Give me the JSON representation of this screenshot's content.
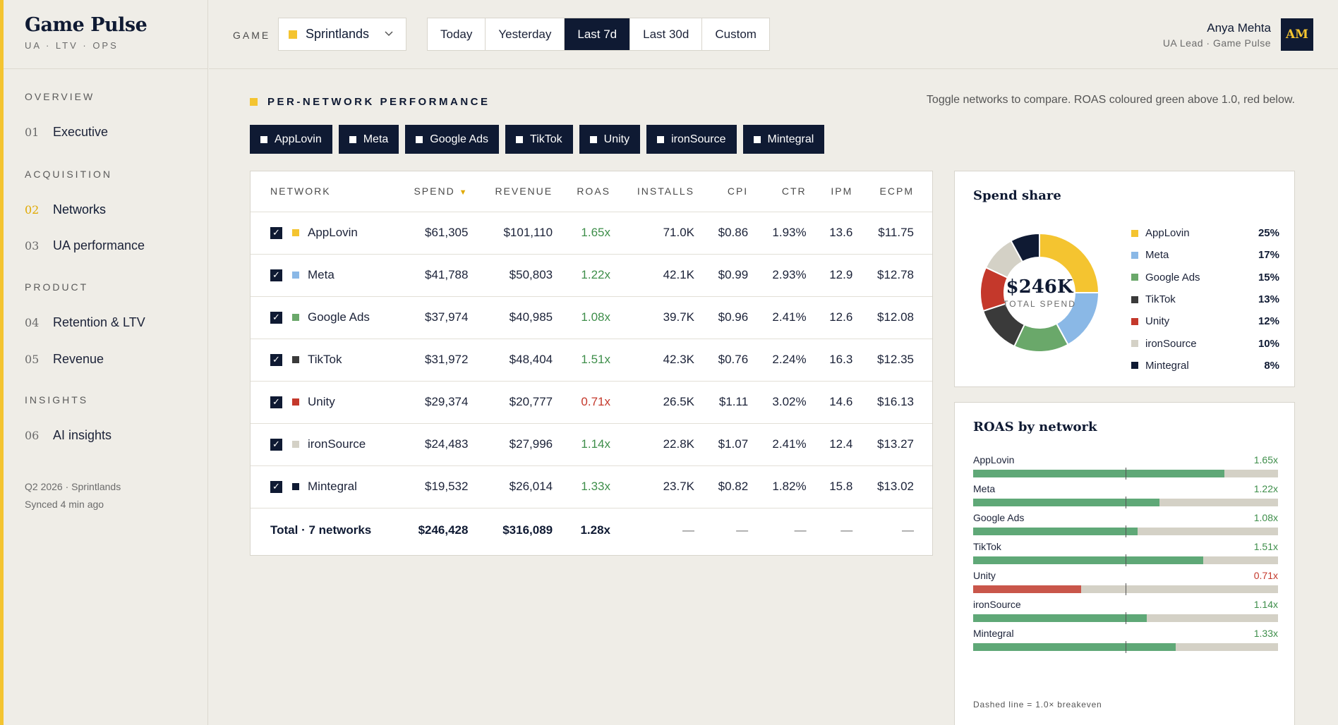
{
  "brand": {
    "title": "Game Pulse",
    "subtitle": "UA · LTV · OPS"
  },
  "nav": {
    "sections": [
      {
        "label": "OVERVIEW",
        "items": [
          {
            "num": "01",
            "label": "Executive"
          }
        ]
      },
      {
        "label": "ACQUISITION",
        "items": [
          {
            "num": "02",
            "label": "Networks",
            "active": true
          },
          {
            "num": "03",
            "label": "UA performance"
          }
        ]
      },
      {
        "label": "PRODUCT",
        "items": [
          {
            "num": "04",
            "label": "Retention & LTV"
          },
          {
            "num": "05",
            "label": "Revenue"
          }
        ]
      },
      {
        "label": "INSIGHTS",
        "items": [
          {
            "num": "06",
            "label": "AI insights"
          }
        ]
      }
    ],
    "footer_line1": "Q2 2026 · Sprintlands",
    "footer_line2": "Synced 4 min ago"
  },
  "topbar": {
    "game_label": "GAME",
    "game_value": "Sprintlands",
    "ranges": [
      "Today",
      "Yesterday",
      "Last 7d",
      "Last 30d",
      "Custom"
    ],
    "active_range": "Last 7d",
    "user_name": "Anya Mehta",
    "user_role": "UA Lead · Game Pulse",
    "avatar": "AM"
  },
  "section": {
    "title": "PER-NETWORK PERFORMANCE",
    "hint": "Toggle networks to compare. ROAS coloured green above 1.0, red below."
  },
  "chips": [
    "AppLovin",
    "Meta",
    "Google Ads",
    "TikTok",
    "Unity",
    "ironSource",
    "Mintegral"
  ],
  "table": {
    "headers": [
      "NETWORK",
      "SPEND",
      "REVENUE",
      "ROAS",
      "INSTALLS",
      "CPI",
      "CTR",
      "IPM",
      "ECPM"
    ],
    "sort_indicator": "▼",
    "rows": [
      {
        "name": "AppLovin",
        "color": "#f4c430",
        "spend": "$61,305",
        "revenue": "$101,110",
        "roas": "1.65x",
        "installs": "71.0K",
        "cpi": "$0.86",
        "ctr": "1.93%",
        "ipm": "13.6",
        "ecpm": "$11.75",
        "good": true
      },
      {
        "name": "Meta",
        "color": "#8ab8e6",
        "spend": "$41,788",
        "revenue": "$50,803",
        "roas": "1.22x",
        "installs": "42.1K",
        "cpi": "$0.99",
        "ctr": "2.93%",
        "ipm": "12.9",
        "ecpm": "$12.78",
        "good": true
      },
      {
        "name": "Google Ads",
        "color": "#6aa86a",
        "spend": "$37,974",
        "revenue": "$40,985",
        "roas": "1.08x",
        "installs": "39.7K",
        "cpi": "$0.96",
        "ctr": "2.41%",
        "ipm": "12.6",
        "ecpm": "$12.08",
        "good": true
      },
      {
        "name": "TikTok",
        "color": "#3a3a3a",
        "spend": "$31,972",
        "revenue": "$48,404",
        "roas": "1.51x",
        "installs": "42.3K",
        "cpi": "$0.76",
        "ctr": "2.24%",
        "ipm": "16.3",
        "ecpm": "$12.35",
        "good": true
      },
      {
        "name": "Unity",
        "color": "#c4382b",
        "spend": "$29,374",
        "revenue": "$20,777",
        "roas": "0.71x",
        "installs": "26.5K",
        "cpi": "$1.11",
        "ctr": "3.02%",
        "ipm": "14.6",
        "ecpm": "$16.13",
        "good": false
      },
      {
        "name": "ironSource",
        "color": "#d4d1c6",
        "spend": "$24,483",
        "revenue": "$27,996",
        "roas": "1.14x",
        "installs": "22.8K",
        "cpi": "$1.07",
        "ctr": "2.41%",
        "ipm": "12.4",
        "ecpm": "$13.27",
        "good": true
      },
      {
        "name": "Mintegral",
        "color": "#0f1a33",
        "spend": "$19,532",
        "revenue": "$26,014",
        "roas": "1.33x",
        "installs": "23.7K",
        "cpi": "$0.82",
        "ctr": "1.82%",
        "ipm": "15.8",
        "ecpm": "$13.02",
        "good": true
      }
    ],
    "total": {
      "label": "Total · 7 networks",
      "spend": "$246,428",
      "revenue": "$316,089",
      "roas": "1.28x",
      "dash": "—"
    }
  },
  "share": {
    "title": "Spend share",
    "center_value": "$246K",
    "center_label": "TOTAL SPEND",
    "slices": [
      {
        "name": "AppLovin",
        "pct": "25%",
        "value": 25,
        "color": "#f4c430"
      },
      {
        "name": "Meta",
        "pct": "17%",
        "value": 17,
        "color": "#8ab8e6"
      },
      {
        "name": "Google Ads",
        "pct": "15%",
        "value": 15,
        "color": "#6aa86a"
      },
      {
        "name": "TikTok",
        "pct": "13%",
        "value": 13,
        "color": "#3a3a3a"
      },
      {
        "name": "Unity",
        "pct": "12%",
        "value": 12,
        "color": "#c4382b"
      },
      {
        "name": "ironSource",
        "pct": "10%",
        "value": 10,
        "color": "#d4d1c6"
      },
      {
        "name": "Mintegral",
        "pct": "8%",
        "value": 8,
        "color": "#0f1a33"
      }
    ]
  },
  "roas_chart": {
    "title": "ROAS by network",
    "max": 2.0,
    "breakeven": 1.0,
    "items": [
      {
        "name": "AppLovin",
        "label": "1.65x",
        "value": 1.65
      },
      {
        "name": "Meta",
        "label": "1.22x",
        "value": 1.22
      },
      {
        "name": "Google Ads",
        "label": "1.08x",
        "value": 1.08
      },
      {
        "name": "TikTok",
        "label": "1.51x",
        "value": 1.51
      },
      {
        "name": "Unity",
        "label": "0.71x",
        "value": 0.71
      },
      {
        "name": "ironSource",
        "label": "1.14x",
        "value": 1.14
      },
      {
        "name": "Mintegral",
        "label": "1.33x",
        "value": 1.33
      }
    ],
    "note": "Dashed line = 1.0× breakeven"
  },
  "colors": {
    "good": "#3e8e4a",
    "bad": "#c4382b",
    "good_bar": "#5fa877",
    "bad_bar": "#c9564a",
    "accent": "#f4c430",
    "navy": "#0f1a33"
  }
}
